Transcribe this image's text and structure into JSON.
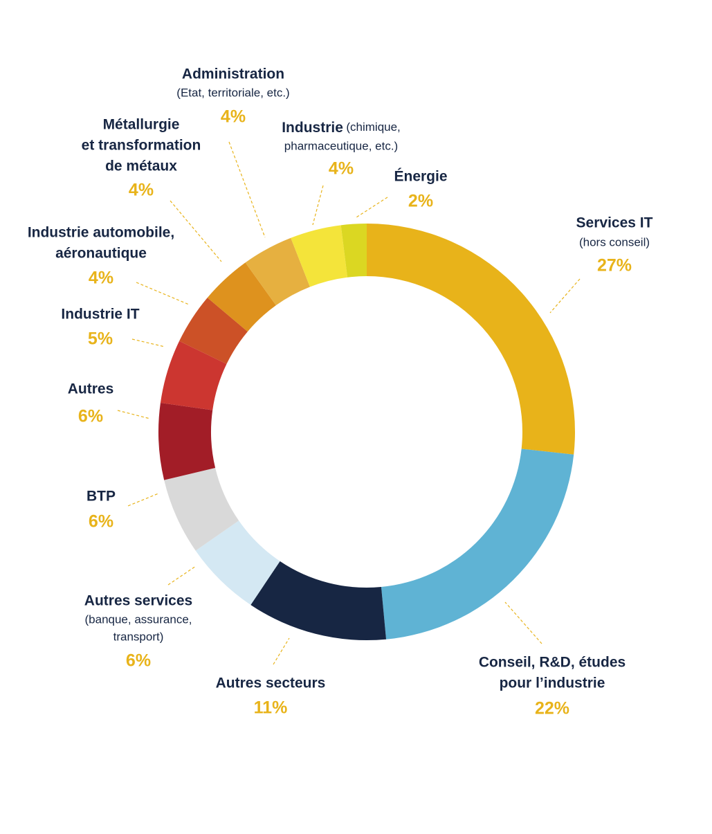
{
  "chart_data": {
    "type": "donut",
    "categories": [
      [
        "Services IT"
      ],
      [
        "Conseil, R&D, études",
        "pour l’industrie"
      ],
      [
        "Autres secteurs"
      ],
      [
        "Autres services"
      ],
      [
        "BTP"
      ],
      [
        "Autres"
      ],
      [
        "Industrie IT"
      ],
      [
        "Industrie automobile,",
        "aéronautique"
      ],
      [
        "Métallurgie",
        "et transformation",
        "de métaux"
      ],
      [
        "Administration"
      ],
      [
        "Industrie"
      ],
      [
        "Énergie"
      ]
    ],
    "notes": {
      "0": [
        "(hors conseil)"
      ],
      "3": [
        "(banque, assurance,",
        "transport)"
      ],
      "9": [
        "(Etat, territoriale, etc.)"
      ],
      "10": [
        "(chimique,",
        "pharmaceutique, etc.)"
      ]
    },
    "values": [
      27,
      22,
      11,
      6,
      6,
      6,
      5,
      4,
      4,
      4,
      4,
      2
    ],
    "value_labels": [
      "27%",
      "22%",
      "11%",
      "6%",
      "6%",
      "6%",
      "5%",
      "4%",
      "4%",
      "4%",
      "4%",
      "2%"
    ],
    "colors": [
      "#e8b31a",
      "#5fb3d4",
      "#172643",
      "#d4e8f3",
      "#d9d9d9",
      "#a21d27",
      "#cc3630",
      "#cc5127",
      "#de921e",
      "#e6b040",
      "#f4e43a",
      "#dbd722"
    ]
  }
}
